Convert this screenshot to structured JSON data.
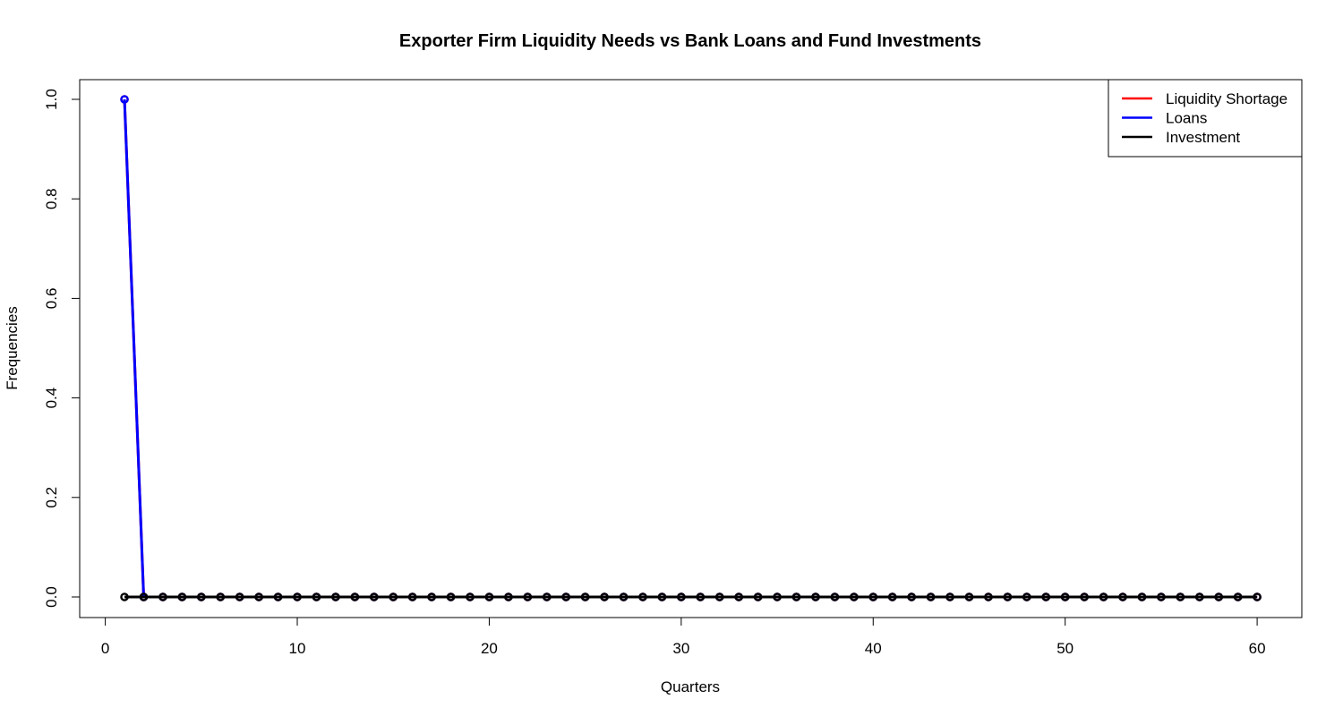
{
  "chart_data": {
    "type": "line",
    "title": "Exporter Firm Liquidity Needs vs Bank Loans and Fund Investments",
    "xlabel": "Quarters",
    "ylabel": "Frequencies",
    "xlim": [
      1,
      60
    ],
    "ylim": [
      0,
      1
    ],
    "x_ticks": [
      "0",
      "10",
      "20",
      "30",
      "40",
      "50",
      "60"
    ],
    "y_ticks": [
      "0.0",
      "0.2",
      "0.4",
      "0.6",
      "0.8",
      "1.0"
    ],
    "grid": false,
    "legend_position": "top-right",
    "x": [
      1,
      2,
      3,
      4,
      5,
      6,
      7,
      8,
      9,
      10,
      11,
      12,
      13,
      14,
      15,
      16,
      17,
      18,
      19,
      20,
      21,
      22,
      23,
      24,
      25,
      26,
      27,
      28,
      29,
      30,
      31,
      32,
      33,
      34,
      35,
      36,
      37,
      38,
      39,
      40,
      41,
      42,
      43,
      44,
      45,
      46,
      47,
      48,
      49,
      50,
      51,
      52,
      53,
      54,
      55,
      56,
      57,
      58,
      59,
      60
    ],
    "series": [
      {
        "name": "Liquidity Shortage",
        "color": "#ff0000",
        "values": [
          1,
          0,
          0,
          0,
          0,
          0,
          0,
          0,
          0,
          0,
          0,
          0,
          0,
          0,
          0,
          0,
          0,
          0,
          0,
          0,
          0,
          0,
          0,
          0,
          0,
          0,
          0,
          0,
          0,
          0,
          0,
          0,
          0,
          0,
          0,
          0,
          0,
          0,
          0,
          0,
          0,
          0,
          0,
          0,
          0,
          0,
          0,
          0,
          0,
          0,
          0,
          0,
          0,
          0,
          0,
          0,
          0,
          0,
          0,
          0
        ]
      },
      {
        "name": "Loans",
        "color": "#0000ff",
        "values": [
          1,
          0,
          0,
          0,
          0,
          0,
          0,
          0,
          0,
          0,
          0,
          0,
          0,
          0,
          0,
          0,
          0,
          0,
          0,
          0,
          0,
          0,
          0,
          0,
          0,
          0,
          0,
          0,
          0,
          0,
          0,
          0,
          0,
          0,
          0,
          0,
          0,
          0,
          0,
          0,
          0,
          0,
          0,
          0,
          0,
          0,
          0,
          0,
          0,
          0,
          0,
          0,
          0,
          0,
          0,
          0,
          0,
          0,
          0,
          0
        ]
      },
      {
        "name": "Investment",
        "color": "#000000",
        "values": [
          0,
          0,
          0,
          0,
          0,
          0,
          0,
          0,
          0,
          0,
          0,
          0,
          0,
          0,
          0,
          0,
          0,
          0,
          0,
          0,
          0,
          0,
          0,
          0,
          0,
          0,
          0,
          0,
          0,
          0,
          0,
          0,
          0,
          0,
          0,
          0,
          0,
          0,
          0,
          0,
          0,
          0,
          0,
          0,
          0,
          0,
          0,
          0,
          0,
          0,
          0,
          0,
          0,
          0,
          0,
          0,
          0,
          0,
          0,
          0
        ]
      }
    ]
  }
}
